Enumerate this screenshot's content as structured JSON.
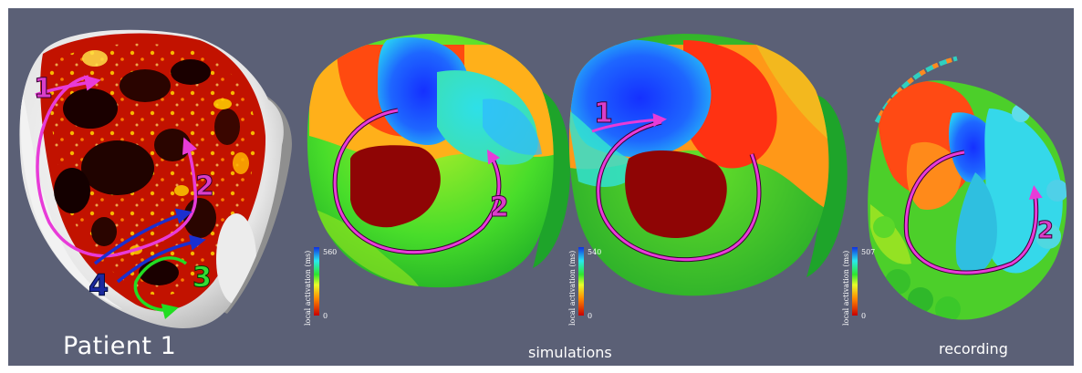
{
  "captions": {
    "patient": "Patient 1",
    "simulations": "simulations",
    "recording": "recording"
  },
  "annotations": {
    "n1": "1",
    "n2": "2",
    "n3": "3",
    "n4": "4"
  },
  "colorbars": [
    {
      "title": "local activation (ms)",
      "max": "560",
      "min": "0"
    },
    {
      "title": "local activation (ms)",
      "max": "540",
      "min": "0"
    },
    {
      "title": "local activation (ms)",
      "max": "507",
      "min": "0"
    }
  ],
  "colors": {
    "background": "#5b6076",
    "arrow_magenta": "#e83bd8",
    "arrow_blue": "#1a2fd0",
    "arrow_green": "#22dd22",
    "label_magenta": "#d93ec9",
    "label_blue": "#1b2a9e",
    "label_green": "#33dd33"
  }
}
